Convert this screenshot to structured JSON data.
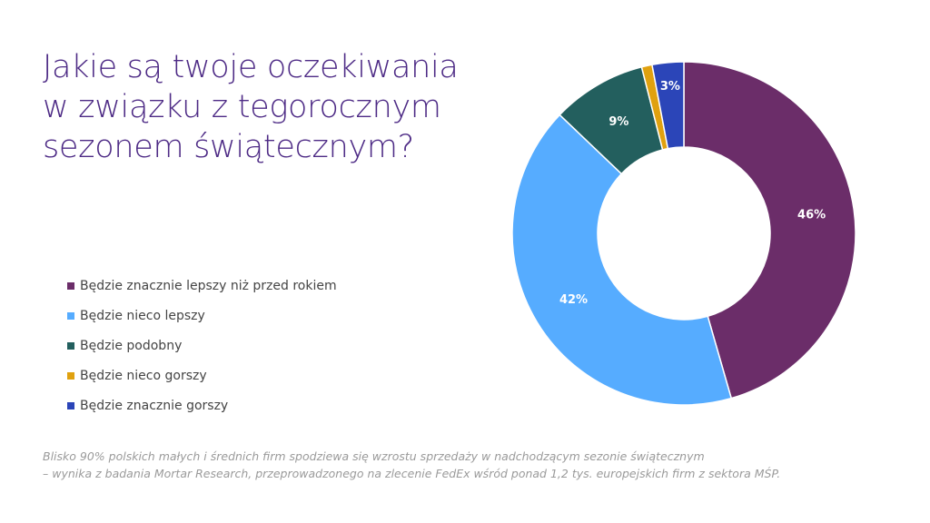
{
  "title": "Jakie są twoje oczekiwania w związku z tegorocznym sezonem świątecznym?",
  "footnote": {
    "line1": "Blisko 90% polskich małych i średnich firm spodziewa się wzrostu sprzedaży w nadchodzącym sezonie świątecznym",
    "line2": "– wynika z badania Mortar Research, przeprowadzonego na zlecenie FedEx wśród ponad 1,2 tys. europejskich firm z sektora MŚP."
  },
  "chart_data": {
    "type": "pie",
    "donut": true,
    "title": "Jakie są twoje oczekiwania w związku z tegorocznym sezonem świątecznym?",
    "legend_position": "left",
    "slices": [
      {
        "label": "Będzie znacznie lepszy niż przed rokiem",
        "value": 46,
        "data_label": "46%",
        "color": "#6b2d69"
      },
      {
        "label": "Będzie nieco lepszy",
        "value": 42,
        "data_label": "42%",
        "color": "#56acff"
      },
      {
        "label": "Będzie podobny",
        "value": 9,
        "data_label": "9%",
        "color": "#235f5e"
      },
      {
        "label": "Będzie nieco gorszy",
        "value": 1,
        "data_label": "",
        "color": "#e0a10f"
      },
      {
        "label": "Będzie znacznie gorszy",
        "value": 3,
        "data_label": "3%",
        "color": "#2b45b8"
      }
    ]
  }
}
